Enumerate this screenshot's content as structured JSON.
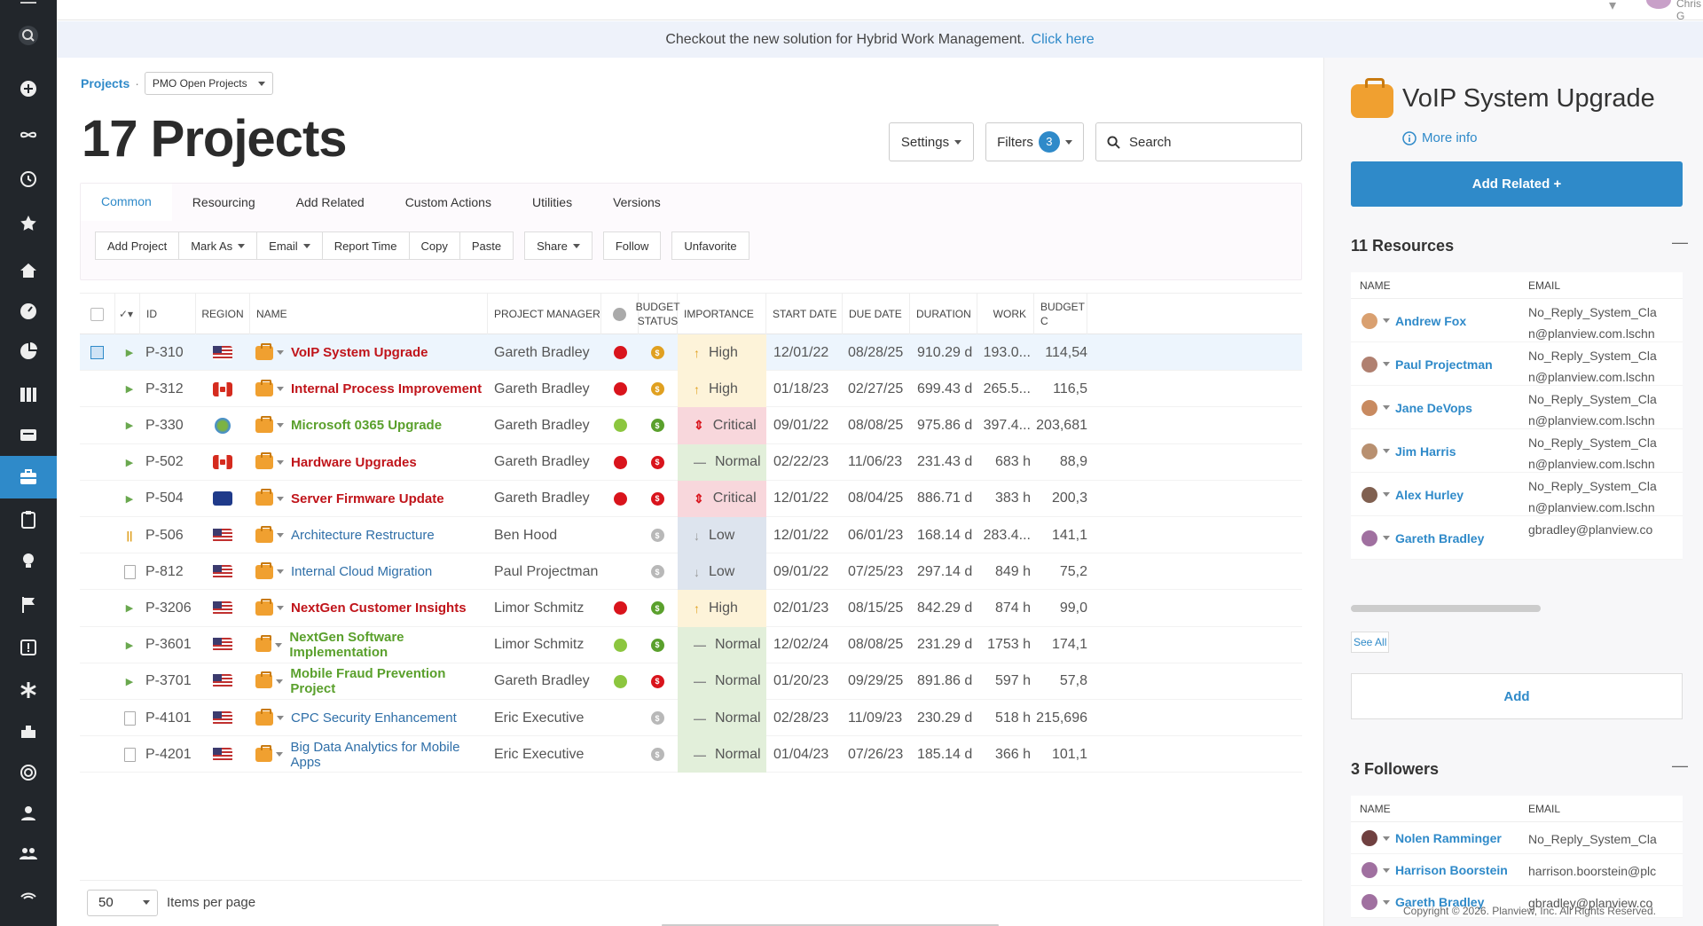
{
  "banner": {
    "text": "Checkout the new solution for Hybrid Work Management.",
    "link": "Click here"
  },
  "topbar": {
    "user_name": "Chris G"
  },
  "breadcrumb": {
    "root": "Projects",
    "separator": "·",
    "view": "PMO Open Projects"
  },
  "page_title": "17 Projects",
  "toolbar": {
    "settings_label": "Settings",
    "filters_label": "Filters",
    "filters_count": "3",
    "search_placeholder": "Search"
  },
  "tabs": [
    "Common",
    "Resourcing",
    "Add Related",
    "Custom Actions",
    "Utilities",
    "Versions"
  ],
  "actions": [
    "Add Project",
    "Mark As",
    "Email",
    "Report Time",
    "Copy",
    "Paste",
    "Share",
    "Follow",
    "Unfavorite"
  ],
  "columns": {
    "id": "ID",
    "region": "REGION",
    "name": "NAME",
    "manager": "PROJECT MANAGER",
    "budget_status": "BUDGET STATUS",
    "importance": "IMPORTANCE",
    "start": "START DATE",
    "due": "DUE DATE",
    "duration": "DURATION",
    "work": "WORK",
    "budget_cost": "BUDGET C"
  },
  "rows": [
    {
      "id": "P-310",
      "marker": "chev",
      "region": "us",
      "name": "VoIP System Upgrade",
      "name_color": "#c0141a",
      "manager": "Gareth Bradley",
      "status": "#d9141c",
      "budget": "#e0a020",
      "importance": "High",
      "start": "12/01/22",
      "due": "08/28/25",
      "duration": "910.29 d",
      "work": "193.0...",
      "cost": "114,54",
      "selected": true
    },
    {
      "id": "P-312",
      "marker": "chev",
      "region": "ca",
      "name": "Internal Process Improvement",
      "name_color": "#c0141a",
      "manager": "Gareth Bradley",
      "status": "#d9141c",
      "budget": "#e0a020",
      "importance": "High",
      "start": "01/18/23",
      "due": "02/27/25",
      "duration": "699.43 d",
      "work": "265.5...",
      "cost": "116,5"
    },
    {
      "id": "P-330",
      "marker": "chev",
      "region": "globe",
      "name": "Microsoft 0365 Upgrade",
      "name_color": "#5aa02c",
      "manager": "Gareth Bradley",
      "status": "#8cc63f",
      "budget": "#5aa02c",
      "importance": "Critical",
      "start": "09/01/22",
      "due": "08/08/25",
      "duration": "975.86 d",
      "work": "397.4...",
      "cost": "203,681"
    },
    {
      "id": "P-502",
      "marker": "chev",
      "region": "ca",
      "name": "Hardware Upgrades",
      "name_color": "#c0141a",
      "manager": "Gareth Bradley",
      "status": "#d9141c",
      "budget": "#d9141c",
      "importance": "Normal",
      "start": "02/22/23",
      "due": "11/06/23",
      "duration": "231.43 d",
      "work": "683 h",
      "cost": "88,9"
    },
    {
      "id": "P-504",
      "marker": "chev",
      "region": "eu",
      "name": "Server Firmware Update",
      "name_color": "#c0141a",
      "manager": "Gareth Bradley",
      "status": "#d9141c",
      "budget": "#d9141c",
      "importance": "Critical",
      "start": "12/01/22",
      "due": "08/04/25",
      "duration": "886.71 d",
      "work": "383 h",
      "cost": "200,3"
    },
    {
      "id": "P-506",
      "marker": "pause",
      "region": "us",
      "name": "Architecture Restructure",
      "name_color": "#2f6fa8",
      "manager": "Ben Hood",
      "status": "",
      "budget": "#b8b8b8",
      "importance": "Low",
      "start": "12/01/22",
      "due": "06/01/23",
      "duration": "168.14 d",
      "work": "283.4...",
      "cost": "141,1"
    },
    {
      "id": "P-812",
      "marker": "doc",
      "region": "us",
      "name": "Internal Cloud Migration",
      "name_color": "#2f6fa8",
      "manager": "Paul Projectman",
      "status": "",
      "budget": "#b8b8b8",
      "importance": "Low",
      "start": "09/01/22",
      "due": "07/25/23",
      "duration": "297.14 d",
      "work": "849 h",
      "cost": "75,2"
    },
    {
      "id": "P-3206",
      "marker": "chev",
      "region": "us",
      "name": "NextGen Customer Insights",
      "name_color": "#c0141a",
      "manager": "Limor Schmitz",
      "status": "#d9141c",
      "budget": "#5aa02c",
      "importance": "High",
      "start": "02/01/23",
      "due": "08/15/25",
      "duration": "842.29 d",
      "work": "874 h",
      "cost": "99,0"
    },
    {
      "id": "P-3601",
      "marker": "chev",
      "region": "us",
      "name": "NextGen Software Implementation",
      "name_color": "#5aa02c",
      "manager": "Limor Schmitz",
      "status": "#8cc63f",
      "budget": "#5aa02c",
      "importance": "Normal",
      "start": "12/02/24",
      "due": "08/08/25",
      "duration": "231.29 d",
      "work": "1753 h",
      "cost": "174,1"
    },
    {
      "id": "P-3701",
      "marker": "chev",
      "region": "us",
      "name": "Mobile Fraud Prevention Project",
      "name_color": "#5aa02c",
      "manager": "Gareth Bradley",
      "status": "#8cc63f",
      "budget": "#d9141c",
      "importance": "Normal",
      "start": "01/20/23",
      "due": "09/29/25",
      "duration": "891.86 d",
      "work": "597 h",
      "cost": "57,8"
    },
    {
      "id": "P-4101",
      "marker": "doc",
      "region": "us",
      "name": "CPC Security Enhancement",
      "name_color": "#2f6fa8",
      "manager": "Eric Executive",
      "status": "",
      "budget": "#b8b8b8",
      "importance": "Normal",
      "start": "02/28/23",
      "due": "11/09/23",
      "duration": "230.29 d",
      "work": "518 h",
      "cost": "215,696"
    },
    {
      "id": "P-4201",
      "marker": "doc",
      "region": "us",
      "name": "Big Data Analytics for Mobile Apps",
      "name_color": "#2f6fa8",
      "manager": "Eric Executive",
      "status": "",
      "budget": "#b8b8b8",
      "importance": "Normal",
      "start": "01/04/23",
      "due": "07/26/23",
      "duration": "185.14 d",
      "work": "366 h",
      "cost": "101,1"
    }
  ],
  "pager": {
    "per_page": "50",
    "label": "Items per page"
  },
  "panel": {
    "title": "VoIP System Upgrade",
    "more_info": "More info",
    "add_related": "Add Related +",
    "resources_title": "11 Resources",
    "col_name": "NAME",
    "col_email": "EMAIL",
    "resources": [
      {
        "name": "Andrew Fox",
        "email": "No_Reply_System_Cla n@planview.com.lschn",
        "color": "#d9a070"
      },
      {
        "name": "Paul Projectman",
        "email": "No_Reply_System_Cla n@planview.com.lschn",
        "color": "#b08070"
      },
      {
        "name": "Jane DeVops",
        "email": "No_Reply_System_Cla n@planview.com.lschn",
        "color": "#c88a60"
      },
      {
        "name": "Jim Harris",
        "email": "No_Reply_System_Cla n@planview.com.lschn",
        "color": "#b89070"
      },
      {
        "name": "Alex Hurley",
        "email": "No_Reply_System_Cla n@planview.com.lschn",
        "color": "#806050"
      },
      {
        "name": "Gareth Bradley",
        "email": "gbradley@planview.co",
        "color": "#a070a0"
      }
    ],
    "see_all": "See All",
    "add": "Add",
    "followers_title": "3 Followers",
    "followers": [
      {
        "name": "Nolen Ramminger",
        "email": "No_Reply_System_Cla",
        "color": "#704040"
      },
      {
        "name": "Harrison Boorstein",
        "email": "harrison.boorstein@plc",
        "color": "#a070a0"
      },
      {
        "name": "Gareth Bradley",
        "email": "gbradley@planview.co",
        "color": "#a070a0"
      }
    ],
    "collapse": "—"
  },
  "copyright": "Copyright © 2026. Planview, Inc. All Rights Reserved."
}
